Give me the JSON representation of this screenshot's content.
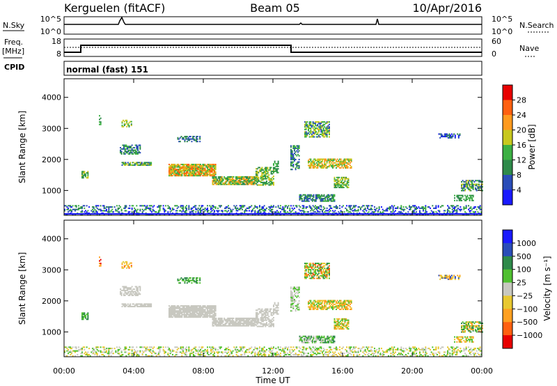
{
  "header": {
    "station": "Kerguelen (fitACF)",
    "beam": "Beam 05",
    "date": "10/Apr/2016"
  },
  "noise_panel": {
    "left_label": "N.Sky",
    "right_label": "N.Search",
    "left_ticks": [
      "10^5",
      "10^0"
    ],
    "right_ticks": [
      "10^5",
      "10^0"
    ]
  },
  "freq_panel": {
    "left_label_1": "Freq.",
    "left_label_2": "[MHz]",
    "right_label": "Nave",
    "left_ticks": [
      "18",
      "8"
    ],
    "right_ticks": [
      "60",
      "0"
    ]
  },
  "cpid": {
    "label": "CPID",
    "program": "normal (fast) 151"
  },
  "colors": {
    "power": [
      "#1a1aff",
      "#2a4db8",
      "#2e8a4a",
      "#3cb043",
      "#c8c81e",
      "#ff9a1e",
      "#ff6010",
      "#e80000"
    ],
    "velocity": [
      "#e80000",
      "#ff6010",
      "#ffa020",
      "#e8c830",
      "#c8c8c0",
      "#50c030",
      "#2e8a4a",
      "#2a4db8",
      "#1a1aff"
    ]
  },
  "chart_data": [
    {
      "type": "heatmap",
      "name_key": "power",
      "ylabel": "Slant Range [km]",
      "yticks": [
        "1000",
        "2000",
        "3000",
        "4000"
      ],
      "ylim": [
        200,
        4600
      ],
      "xlim": [
        0,
        24
      ],
      "colorbar_label": "Power [dB]",
      "colorbar_ticks": [
        "4",
        "8",
        "12",
        "16",
        "20",
        "24",
        "28"
      ],
      "colorbar_range": [
        0,
        30
      ]
    },
    {
      "type": "heatmap",
      "name_key": "velocity",
      "ylabel": "Slant Range [km]",
      "yticks": [
        "1000",
        "2000",
        "3000",
        "4000"
      ],
      "ylim": [
        200,
        4600
      ],
      "xlim": [
        0,
        24
      ],
      "xlabel": "Time UT",
      "xticks": [
        "00:00",
        "04:00",
        "08:00",
        "12:00",
        "16:00",
        "20:00",
        "00:00"
      ],
      "colorbar_label": "Velocity [m s⁻¹]",
      "colorbar_ticks": [
        "1000",
        "500",
        "100",
        "25",
        "−25",
        "−100",
        "−500",
        "−1000"
      ]
    }
  ]
}
